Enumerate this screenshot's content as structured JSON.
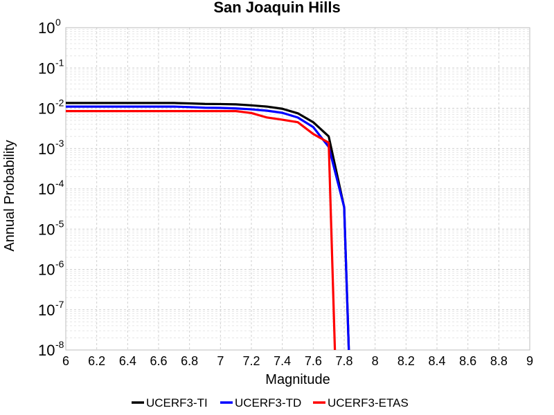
{
  "chart_data": {
    "type": "line",
    "title": "San Joaquin Hills",
    "xlabel": "Magnitude",
    "ylabel": "Annual Probability",
    "xlim": [
      6,
      9
    ],
    "ylim": [
      1e-08,
      1
    ],
    "yscale": "log",
    "grid": true,
    "legend_position": "bottom",
    "x_ticks": [
      "6",
      "6.2",
      "6.4",
      "6.6",
      "6.8",
      "7",
      "7.2",
      "7.4",
      "7.6",
      "7.8",
      "8",
      "8.2",
      "8.4",
      "8.6",
      "8.8",
      "9"
    ],
    "y_ticks": [
      {
        "base": "10",
        "exp": "0"
      },
      {
        "base": "10",
        "exp": "-1"
      },
      {
        "base": "10",
        "exp": "-2"
      },
      {
        "base": "10",
        "exp": "-3"
      },
      {
        "base": "10",
        "exp": "-4"
      },
      {
        "base": "10",
        "exp": "-5"
      },
      {
        "base": "10",
        "exp": "-6"
      },
      {
        "base": "10",
        "exp": "-7"
      },
      {
        "base": "10",
        "exp": "-8"
      }
    ],
    "series": [
      {
        "name": "UCERF3-TI",
        "color": "#000000",
        "x": [
          6.0,
          6.1,
          6.2,
          6.3,
          6.4,
          6.5,
          6.6,
          6.7,
          6.8,
          6.9,
          7.0,
          7.1,
          7.2,
          7.3,
          7.4,
          7.5,
          7.6,
          7.7,
          7.8,
          7.83
        ],
        "y": [
          0.0135,
          0.0135,
          0.0135,
          0.0135,
          0.0135,
          0.0135,
          0.0135,
          0.0135,
          0.0132,
          0.0128,
          0.0127,
          0.0125,
          0.0118,
          0.011,
          0.0097,
          0.0075,
          0.0045,
          0.002,
          3.5e-05,
          1e-08
        ]
      },
      {
        "name": "UCERF3-TD",
        "color": "#0000ff",
        "x": [
          6.0,
          6.1,
          6.2,
          6.3,
          6.4,
          6.5,
          6.6,
          6.7,
          6.8,
          6.9,
          7.0,
          7.1,
          7.2,
          7.3,
          7.4,
          7.5,
          7.6,
          7.7,
          7.8,
          7.83
        ],
        "y": [
          0.011,
          0.011,
          0.011,
          0.011,
          0.011,
          0.011,
          0.011,
          0.011,
          0.0107,
          0.0103,
          0.0102,
          0.0099,
          0.0094,
          0.0087,
          0.0077,
          0.0059,
          0.0034,
          0.0011,
          3.5e-05,
          1e-08
        ]
      },
      {
        "name": "UCERF3-ETAS",
        "color": "#ff0000",
        "x": [
          6.0,
          6.1,
          6.2,
          6.3,
          6.4,
          6.5,
          6.6,
          6.7,
          6.8,
          6.9,
          7.0,
          7.1,
          7.2,
          7.3,
          7.4,
          7.5,
          7.6,
          7.7,
          7.74
        ],
        "y": [
          0.0085,
          0.0085,
          0.0085,
          0.0085,
          0.0085,
          0.0085,
          0.0085,
          0.0085,
          0.0085,
          0.0085,
          0.0085,
          0.0085,
          0.0076,
          0.0059,
          0.0052,
          0.0045,
          0.0023,
          0.0014,
          1e-08
        ]
      }
    ]
  }
}
